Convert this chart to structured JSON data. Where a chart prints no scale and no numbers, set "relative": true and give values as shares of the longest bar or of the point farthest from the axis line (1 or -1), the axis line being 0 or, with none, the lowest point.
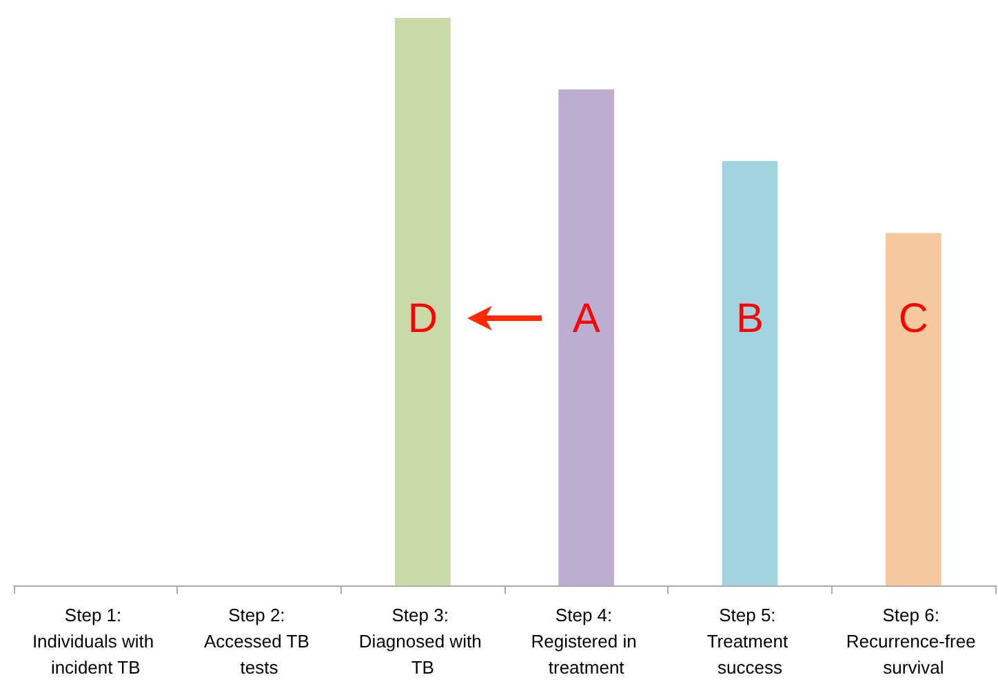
{
  "chart_data": {
    "type": "bar",
    "relative": true,
    "categories": [
      "Step 1: Individuals with incident TB",
      "Step 2: Accessed TB tests",
      "Step 3: Diagnosed with TB",
      "Step 4: Registered in treatment",
      "Step 5: Treatment success",
      "Step 6: Recurrence-free survival"
    ],
    "values": [
      null,
      null,
      1,
      0.874,
      0.748,
      0.621
    ],
    "colors": [
      "#c9d9a8",
      "#c9d9a8",
      "#c9d9a8",
      "#bcaed0",
      "#a0d4e0",
      "#f7c89e"
    ],
    "annotations": [
      "D",
      "A",
      "B",
      "C"
    ]
  }
}
